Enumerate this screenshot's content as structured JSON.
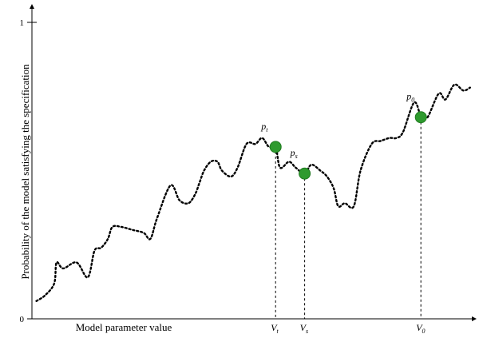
{
  "chart_data": {
    "type": "line",
    "title": "",
    "xlabel": "Model parameter value",
    "ylabel": "Probability of the model satisfying the specification",
    "ylim": [
      0,
      1
    ],
    "yticks": [
      {
        "value": 0,
        "label": "0"
      },
      {
        "value": 1,
        "label": "1"
      }
    ],
    "grid": false,
    "series": [
      {
        "line_style": "dotted",
        "x": [
          0.01,
          0.03,
          0.05,
          0.055,
          0.07,
          0.1,
          0.125,
          0.14,
          0.155,
          0.17,
          0.18,
          0.2,
          0.225,
          0.25,
          0.265,
          0.28,
          0.31,
          0.33,
          0.35,
          0.365,
          0.375,
          0.385,
          0.4,
          0.415,
          0.425,
          0.445,
          0.46,
          0.48,
          0.5,
          0.515,
          0.53,
          0.545,
          0.555,
          0.575,
          0.59,
          0.61,
          0.625,
          0.645,
          0.66,
          0.675,
          0.685,
          0.7,
          0.72,
          0.735,
          0.76,
          0.78,
          0.8,
          0.815,
          0.83,
          0.855,
          0.87,
          0.875,
          0.885,
          0.91,
          0.925,
          0.945,
          0.965,
          0.98
        ],
        "y": [
          0.06,
          0.08,
          0.12,
          0.19,
          0.17,
          0.19,
          0.14,
          0.23,
          0.24,
          0.27,
          0.31,
          0.31,
          0.3,
          0.29,
          0.27,
          0.34,
          0.45,
          0.4,
          0.39,
          0.42,
          0.46,
          0.5,
          0.53,
          0.53,
          0.5,
          0.48,
          0.51,
          0.59,
          0.59,
          0.61,
          0.58,
          0.58,
          0.51,
          0.53,
          0.51,
          0.49,
          0.52,
          0.5,
          0.48,
          0.44,
          0.38,
          0.39,
          0.38,
          0.5,
          0.59,
          0.6,
          0.61,
          0.61,
          0.63,
          0.73,
          0.68,
          0.69,
          0.68,
          0.76,
          0.74,
          0.79,
          0.77,
          0.78
        ]
      }
    ],
    "points": [
      {
        "label": "p",
        "label_sub": "t",
        "x": 0.545,
        "y": 0.58,
        "xtick": "V",
        "xtick_sub": "t"
      },
      {
        "label": "p",
        "label_sub": "s",
        "x": 0.61,
        "y": 0.49,
        "xtick": "V",
        "xtick_sub": "s"
      },
      {
        "label": "p",
        "label_sub": "0",
        "x": 0.87,
        "y": 0.68,
        "xtick": "V",
        "xtick_sub": "0"
      }
    ],
    "colors": {
      "curve": "#000000",
      "marker": "#2e9a2e",
      "axis": "#000000"
    }
  }
}
